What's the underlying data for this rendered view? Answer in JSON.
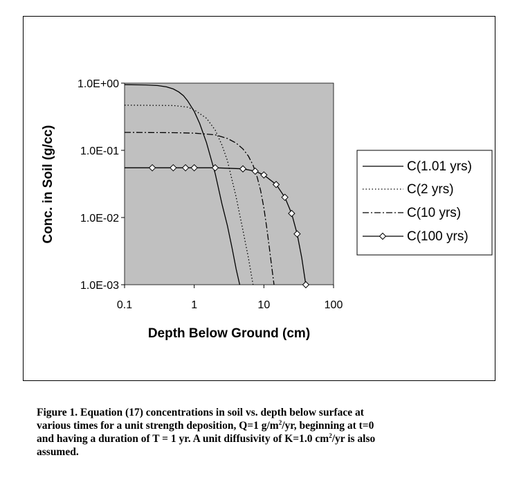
{
  "chart_data": {
    "type": "line",
    "title": "",
    "xlabel": "Depth Below Ground (cm)",
    "ylabel": "Conc. in Soil (g/cc)",
    "x_scale": "log",
    "y_scale": "log",
    "xlim": [
      0.1,
      100
    ],
    "ylim": [
      0.001,
      1
    ],
    "x_tick_values": [
      0.1,
      1,
      10,
      100
    ],
    "x_tick_labels": [
      "0.1",
      "1",
      "10",
      "100"
    ],
    "y_tick_values": [
      1,
      0.1,
      0.01,
      0.001
    ],
    "y_tick_labels": [
      "1.0E+00",
      "1.0E-01",
      "1.0E-02",
      "1.0E-03"
    ],
    "grid": false,
    "plot_background": "#c0c0c0",
    "legend_position": "right",
    "series": [
      {
        "name": "C(1.01 yrs)",
        "style": "solid",
        "marker": "none",
        "x": [
          0.1,
          0.2,
          0.3,
          0.4,
          0.5,
          0.6,
          0.7,
          0.8,
          1.0,
          1.2,
          1.5,
          2.0,
          2.5,
          3.0,
          3.5,
          4.0,
          4.5
        ],
        "y": [
          0.95,
          0.94,
          0.92,
          0.88,
          0.82,
          0.74,
          0.65,
          0.55,
          0.38,
          0.25,
          0.13,
          0.045,
          0.016,
          0.0075,
          0.0035,
          0.0017,
          0.001
        ]
      },
      {
        "name": "C(2 yrs)",
        "style": "dotted",
        "marker": "none",
        "x": [
          0.1,
          0.5,
          0.8,
          1.0,
          1.5,
          2.0,
          2.5,
          3.0,
          4.0,
          5.0,
          6.0,
          7.0
        ],
        "y": [
          0.47,
          0.465,
          0.44,
          0.4,
          0.3,
          0.2,
          0.12,
          0.07,
          0.02,
          0.0065,
          0.0025,
          0.001
        ]
      },
      {
        "name": "C(10 yrs)",
        "style": "dashdot",
        "marker": "none",
        "x": [
          0.1,
          0.5,
          1.0,
          2.0,
          3.0,
          4.0,
          5.0,
          6.0,
          7.0,
          8.0,
          9.0,
          10.0,
          11.0,
          12.0,
          13.0,
          14.0
        ],
        "y": [
          0.185,
          0.183,
          0.18,
          0.17,
          0.15,
          0.128,
          0.105,
          0.082,
          0.06,
          0.04,
          0.025,
          0.014,
          0.007,
          0.0035,
          0.0018,
          0.001
        ]
      },
      {
        "name": "C(100 yrs)",
        "style": "solid",
        "marker": "diamond",
        "x": [
          0.1,
          0.25,
          0.5,
          0.75,
          1.0,
          2.0,
          5.0,
          7.5,
          10,
          15,
          20,
          25,
          30,
          35,
          40
        ],
        "y": [
          0.055,
          0.055,
          0.055,
          0.055,
          0.055,
          0.055,
          0.053,
          0.049,
          0.043,
          0.031,
          0.02,
          0.0115,
          0.0057,
          0.0025,
          0.001
        ],
        "marker_x": [
          0.25,
          0.5,
          0.75,
          1.0,
          2.0,
          5.0,
          7.5,
          10,
          15,
          20,
          25,
          30,
          40
        ],
        "marker_y": [
          0.055,
          0.055,
          0.055,
          0.055,
          0.055,
          0.053,
          0.049,
          0.043,
          0.031,
          0.02,
          0.0115,
          0.0057,
          0.001
        ]
      }
    ]
  },
  "caption": {
    "line1": "Figure 1.  Equation (17) concentrations in soil vs. depth below surface at",
    "line2_a": "various times for a unit strength deposition, Q=1 g/m",
    "line2_sup": "2",
    "line2_b": "/yr, beginning at t=0",
    "line3_a": "and having a duration of T = 1 yr.  A unit diffusivity of K=1.0 cm",
    "line3_sup": "2",
    "line3_b": "/yr is also",
    "line4": "assumed."
  }
}
